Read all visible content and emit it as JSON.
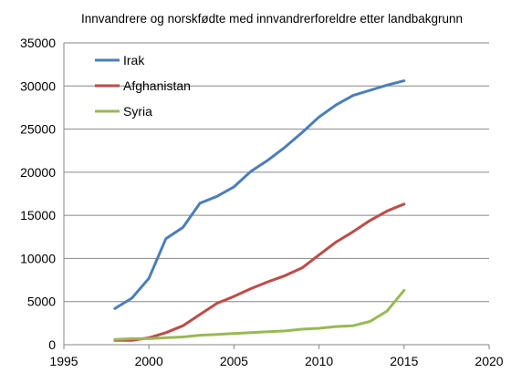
{
  "chart_data": {
    "type": "line",
    "title": "Innvandrere og norskfødte med innvandrerforeldre etter landbakgrunn",
    "xlabel": "",
    "ylabel": "",
    "xlim": [
      1995,
      2020
    ],
    "ylim": [
      0,
      35000
    ],
    "x_ticks": [
      1995,
      2000,
      2005,
      2010,
      2015,
      2020
    ],
    "y_ticks": [
      0,
      5000,
      10000,
      15000,
      20000,
      25000,
      30000,
      35000
    ],
    "grid": "horizontal",
    "legend_position": "top-left",
    "x": [
      1998,
      1999,
      2000,
      2001,
      2002,
      2003,
      2004,
      2005,
      2006,
      2007,
      2008,
      2009,
      2010,
      2011,
      2012,
      2013,
      2014,
      2015
    ],
    "series": [
      {
        "name": "Irak",
        "color": "#4a7ebb",
        "values": [
          4200,
          5400,
          7700,
          12300,
          13600,
          16400,
          17200,
          18300,
          20100,
          21400,
          22900,
          24600,
          26400,
          27800,
          28900,
          29500,
          30100,
          30600
        ]
      },
      {
        "name": "Afghanistan",
        "color": "#be4b48",
        "values": [
          500,
          500,
          800,
          1400,
          2200,
          3500,
          4800,
          5600,
          6500,
          7300,
          8000,
          8900,
          10400,
          11900,
          13100,
          14400,
          15500,
          16300
        ]
      },
      {
        "name": "Syria",
        "color": "#98b954",
        "values": [
          600,
          700,
          700,
          800,
          900,
          1100,
          1200,
          1300,
          1400,
          1500,
          1600,
          1800,
          1900,
          2100,
          2200,
          2700,
          3900,
          6300
        ]
      }
    ]
  }
}
